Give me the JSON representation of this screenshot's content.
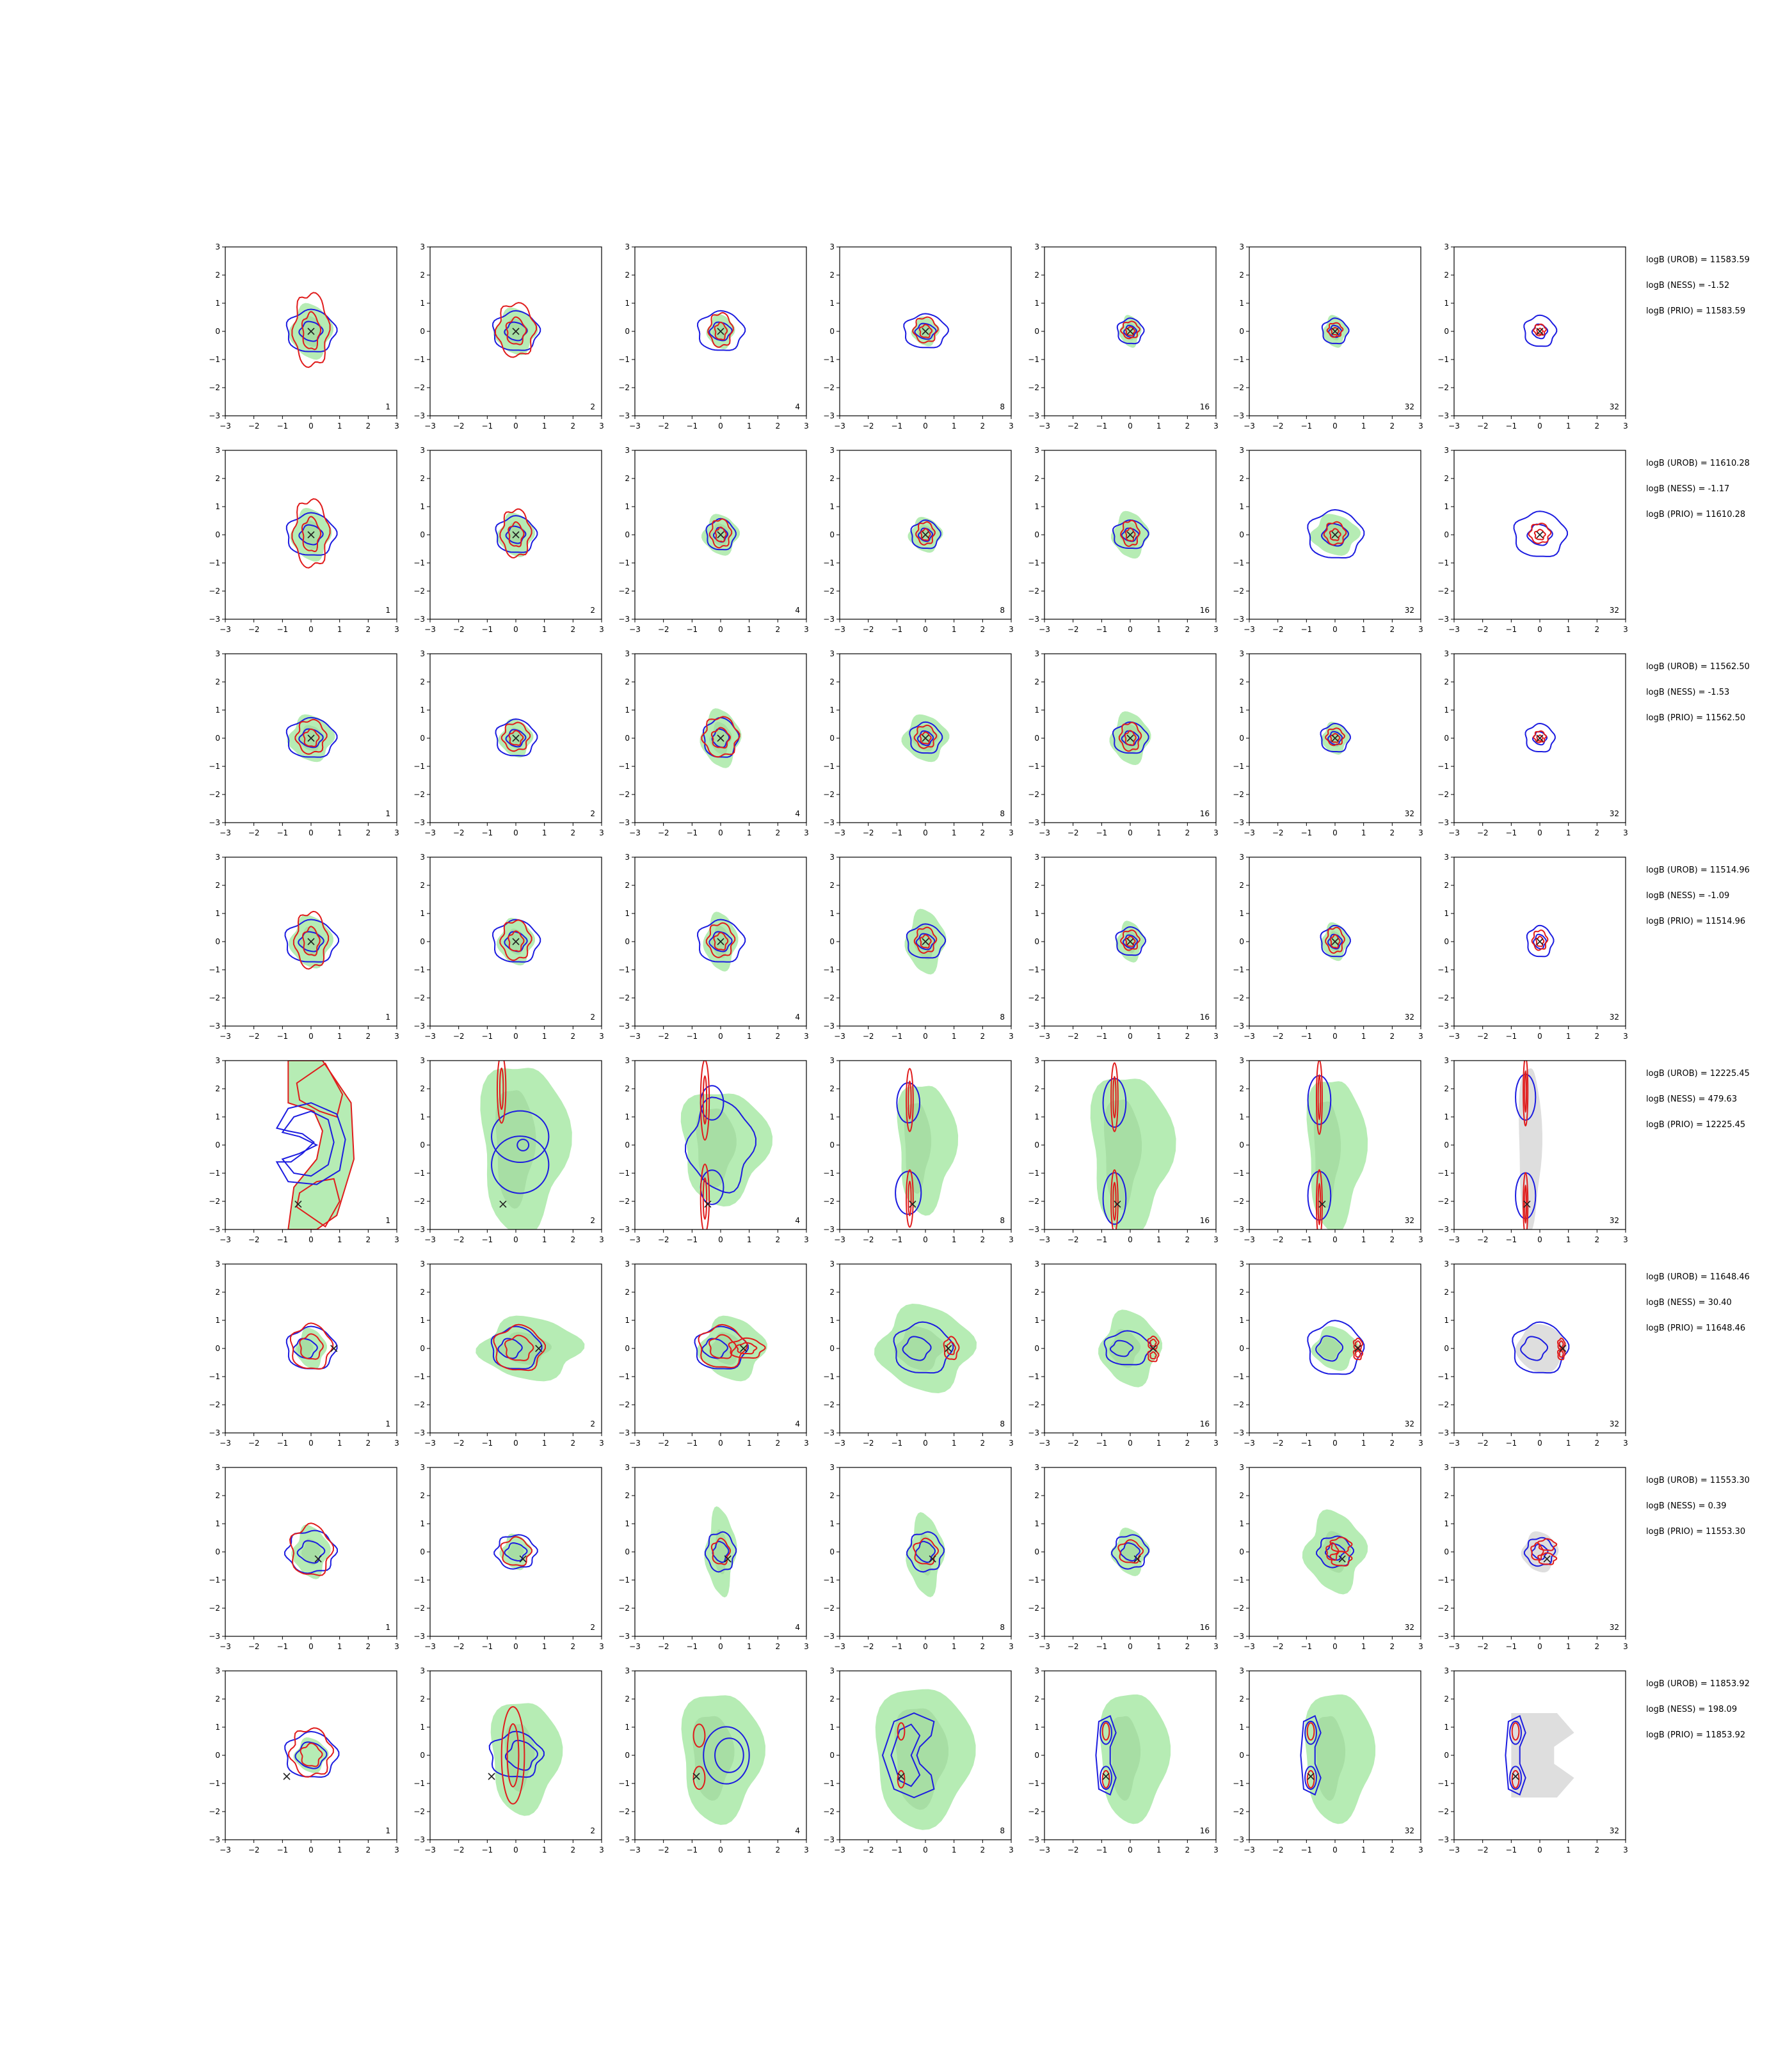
{
  "figure": {
    "colors": {
      "truth_fill": "#b6ecb4",
      "truth_fill_inner": "#9cd69a",
      "prior_fill": "#dedede",
      "method_a": "#e01c1c",
      "method_b": "#1c1ce0",
      "marker": "#222222",
      "axis": "#000000"
    },
    "tick_labels": [
      "−3",
      "−2",
      "−1",
      "0",
      "1",
      "2",
      "3"
    ],
    "panel_labels": [
      "1",
      "2",
      "4",
      "8",
      "16",
      "32",
      "32"
    ],
    "rows": [
      {
        "stats": [
          "logB (UROB) = 11583.59",
          "logB (NESS) = -1.52",
          "logB (PRIO) = 11583.59"
        ]
      },
      {
        "stats": [
          "logB (UROB) = 11610.28",
          "logB (NESS) = -1.17",
          "logB (PRIO) = 11610.28"
        ]
      },
      {
        "stats": [
          "logB (UROB) = 11562.50",
          "logB (NESS) = -1.53",
          "logB (PRIO) = 11562.50"
        ]
      },
      {
        "stats": [
          "logB (UROB) = 11514.96",
          "logB (NESS) = -1.09",
          "logB (PRIO) = 11514.96"
        ]
      },
      {
        "stats": [
          "logB (UROB) = 12225.45",
          "logB (NESS) = 479.63",
          "logB (PRIO) = 12225.45"
        ]
      },
      {
        "stats": [
          "logB (UROB) = 11648.46",
          "logB (NESS) = 30.40",
          "logB (PRIO) = 11648.46"
        ]
      },
      {
        "stats": [
          "logB (UROB) = 11553.30",
          "logB (NESS) = 0.39",
          "logB (PRIO) = 11553.30"
        ]
      },
      {
        "stats": [
          "logB (UROB) = 11853.92",
          "logB (NESS) = 198.09",
          "logB (PRIO) = 11853.92"
        ]
      }
    ]
  },
  "chart_data": {
    "type": "contour",
    "grid": {
      "rows": 8,
      "cols": 7
    },
    "xlim": [
      -3,
      3
    ],
    "ylim": [
      -3,
      3
    ],
    "xticks": [
      -3,
      -2,
      -1,
      0,
      1,
      2,
      3
    ],
    "yticks": [
      -3,
      -2,
      -1,
      0,
      1,
      2,
      3
    ],
    "panel_labels": [
      "1",
      "2",
      "4",
      "8",
      "16",
      "32",
      "32"
    ],
    "markers": [
      {
        "row": 1,
        "x": 0.0,
        "y": 0.0
      },
      {
        "row": 2,
        "x": 0.0,
        "y": 0.0
      },
      {
        "row": 3,
        "x": 0.0,
        "y": 0.0
      },
      {
        "row": 4,
        "x": 0.0,
        "y": 0.0
      },
      {
        "row": 5,
        "x": -0.45,
        "y": -2.1
      },
      {
        "row": 6,
        "x": 0.8,
        "y": 0.0
      },
      {
        "row": 7,
        "x": 0.25,
        "y": -0.25
      },
      {
        "row": 8,
        "x": -0.85,
        "y": -0.75
      }
    ],
    "stats": [
      {
        "UROB": 11583.59,
        "NESS": -1.52,
        "PRIO": 11583.59
      },
      {
        "UROB": 11610.28,
        "NESS": -1.17,
        "PRIO": 11610.28
      },
      {
        "UROB": 11562.5,
        "NESS": -1.53,
        "PRIO": 11562.5
      },
      {
        "UROB": 11514.96,
        "NESS": -1.09,
        "PRIO": 11514.96
      },
      {
        "UROB": 12225.45,
        "NESS": 479.63,
        "PRIO": 12225.45
      },
      {
        "UROB": 11648.46,
        "NESS": 30.4,
        "PRIO": 11648.46
      },
      {
        "UROB": 11553.3,
        "NESS": 0.39,
        "PRIO": 11553.3
      },
      {
        "UROB": 11853.92,
        "NESS": 198.09,
        "PRIO": 11853.92
      }
    ]
  }
}
